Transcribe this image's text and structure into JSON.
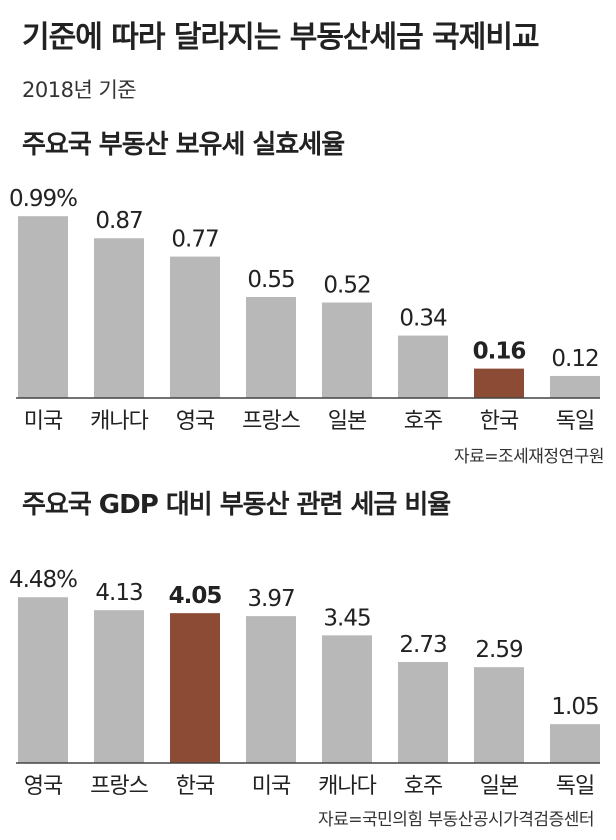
{
  "header": {
    "title": "기준에 따라 달라지는 부동산세금 국제비교",
    "subtitle": "2018년 기준"
  },
  "colors": {
    "bar": "#b8b8b8",
    "highlight": "#8b4b35",
    "axis": "#444444"
  },
  "chart_data": [
    {
      "type": "bar",
      "title": "주요국 부동산 보유세 실효세율",
      "categories": [
        "미국",
        "캐나다",
        "영국",
        "프랑스",
        "일본",
        "호주",
        "한국",
        "독일"
      ],
      "values": [
        0.99,
        0.87,
        0.77,
        0.55,
        0.52,
        0.34,
        0.16,
        0.12
      ],
      "value_labels": [
        "0.99%",
        "0.87",
        "0.77",
        "0.55",
        "0.52",
        "0.34",
        "0.16",
        "0.12"
      ],
      "highlight": "한국",
      "source": "자료=조세재정연구원",
      "ylim": [
        0,
        1.1
      ],
      "grid": false
    },
    {
      "type": "bar",
      "title": "주요국 GDP 대비 부동산 관련 세금 비율",
      "categories": [
        "영국",
        "프랑스",
        "한국",
        "미국",
        "캐나다",
        "호주",
        "일본",
        "독일"
      ],
      "values": [
        4.48,
        4.13,
        4.05,
        3.97,
        3.45,
        2.73,
        2.59,
        1.05
      ],
      "value_labels": [
        "4.48%",
        "4.13",
        "4.05",
        "3.97",
        "3.45",
        "2.73",
        "2.59",
        "1.05"
      ],
      "highlight": "한국",
      "source": "자료=국민의힘 부동산공시가격검증센터",
      "ylim": [
        0,
        5.0
      ],
      "grid": false
    }
  ]
}
